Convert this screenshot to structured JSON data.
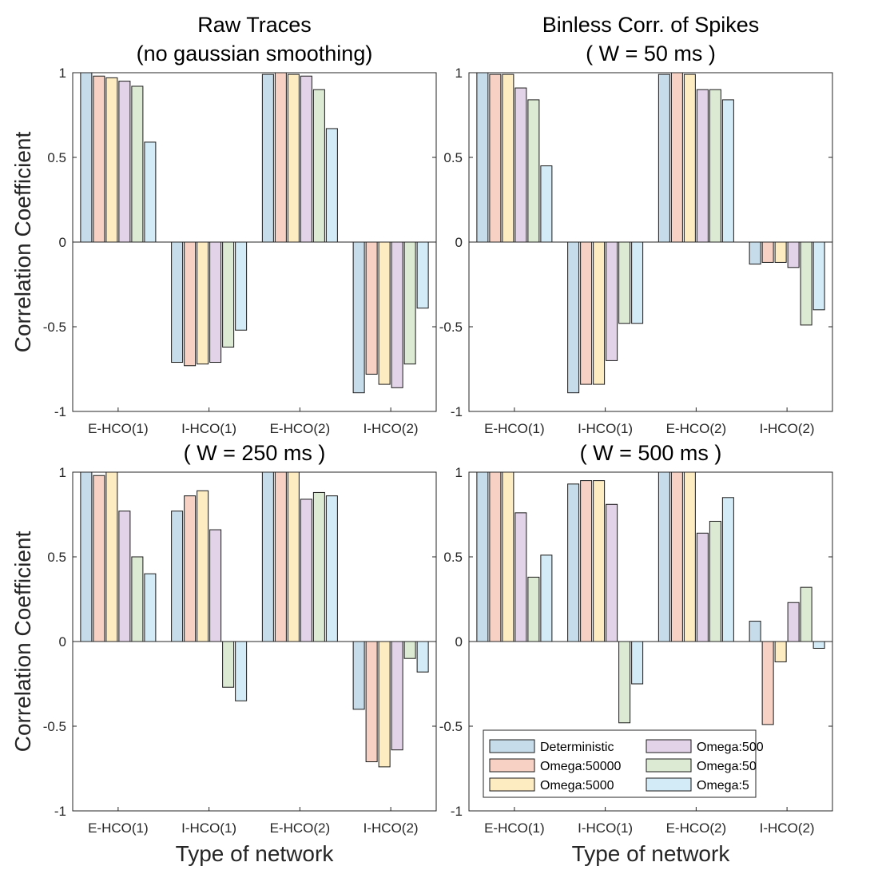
{
  "chart_data": [
    {
      "type": "bar",
      "title": [
        "Raw Traces",
        "(no gaussian smoothing)"
      ],
      "xlabel": "",
      "ylabel": "Correlation Coefficient",
      "ylim": [
        -1,
        1
      ],
      "yticks": [
        "1",
        "0.5",
        "0",
        "-0.5",
        "-1"
      ],
      "categories": [
        "E-HCO(1)",
        "I-HCO(1)",
        "E-HCO(2)",
        "I-HCO(2)"
      ],
      "series": [
        {
          "name": "Deterministic",
          "values": [
            1.0,
            -0.71,
            0.99,
            -0.89
          ]
        },
        {
          "name": "Omega:50000",
          "values": [
            0.98,
            -0.73,
            1.0,
            -0.78
          ]
        },
        {
          "name": "Omega:5000",
          "values": [
            0.97,
            -0.72,
            0.99,
            -0.84
          ]
        },
        {
          "name": "Omega:500",
          "values": [
            0.95,
            -0.71,
            0.98,
            -0.86
          ]
        },
        {
          "name": "Omega:50",
          "values": [
            0.92,
            -0.62,
            0.9,
            -0.72
          ]
        },
        {
          "name": "Omega:5",
          "values": [
            0.59,
            -0.52,
            0.67,
            -0.39
          ]
        }
      ]
    },
    {
      "type": "bar",
      "title": [
        "Binless Corr. of Spikes",
        "( W = 50 ms )"
      ],
      "xlabel": "",
      "ylabel": "",
      "ylim": [
        -1,
        1
      ],
      "yticks": [
        "1",
        "0.5",
        "0",
        "-0.5",
        "-1"
      ],
      "categories": [
        "E-HCO(1)",
        "I-HCO(1)",
        "E-HCO(2)",
        "I-HCO(2)"
      ],
      "series": [
        {
          "name": "Deterministic",
          "values": [
            1.0,
            -0.89,
            0.99,
            -0.13
          ]
        },
        {
          "name": "Omega:50000",
          "values": [
            0.99,
            -0.84,
            1.0,
            -0.12
          ]
        },
        {
          "name": "Omega:5000",
          "values": [
            0.99,
            -0.84,
            0.99,
            -0.12
          ]
        },
        {
          "name": "Omega:500",
          "values": [
            0.91,
            -0.7,
            0.9,
            -0.15
          ]
        },
        {
          "name": "Omega:50",
          "values": [
            0.84,
            -0.48,
            0.9,
            -0.49
          ]
        },
        {
          "name": "Omega:5",
          "values": [
            0.45,
            -0.48,
            0.84,
            -0.4
          ]
        }
      ]
    },
    {
      "type": "bar",
      "title": [
        "( W = 250 ms )"
      ],
      "xlabel": "Type of network",
      "ylabel": "Correlation Coefficient",
      "ylim": [
        -1,
        1
      ],
      "yticks": [
        "1",
        "0.5",
        "0",
        "-0.5",
        "-1"
      ],
      "categories": [
        "E-HCO(1)",
        "I-HCO(1)",
        "E-HCO(2)",
        "I-HCO(2)"
      ],
      "series": [
        {
          "name": "Deterministic",
          "values": [
            1.0,
            0.77,
            1.0,
            -0.4
          ]
        },
        {
          "name": "Omega:50000",
          "values": [
            0.98,
            0.86,
            1.0,
            -0.71
          ]
        },
        {
          "name": "Omega:5000",
          "values": [
            1.0,
            0.89,
            1.0,
            -0.74
          ]
        },
        {
          "name": "Omega:500",
          "values": [
            0.77,
            0.66,
            0.84,
            -0.64
          ]
        },
        {
          "name": "Omega:50",
          "values": [
            0.5,
            -0.27,
            0.88,
            -0.1
          ]
        },
        {
          "name": "Omega:5",
          "values": [
            0.4,
            -0.35,
            0.86,
            -0.18
          ]
        }
      ]
    },
    {
      "type": "bar",
      "title": [
        "( W = 500 ms )"
      ],
      "xlabel": "Type of network",
      "ylabel": "",
      "ylim": [
        -1,
        1
      ],
      "yticks": [
        "1",
        "0.5",
        "0",
        "-0.5",
        "-1"
      ],
      "categories": [
        "E-HCO(1)",
        "I-HCO(1)",
        "E-HCO(2)",
        "I-HCO(2)"
      ],
      "series": [
        {
          "name": "Deterministic",
          "values": [
            1.0,
            0.93,
            1.0,
            0.12
          ]
        },
        {
          "name": "Omega:50000",
          "values": [
            1.0,
            0.95,
            1.0,
            -0.49
          ]
        },
        {
          "name": "Omega:5000",
          "values": [
            1.0,
            0.95,
            1.0,
            -0.12
          ]
        },
        {
          "name": "Omega:500",
          "values": [
            0.76,
            0.81,
            0.64,
            0.23
          ]
        },
        {
          "name": "Omega:50",
          "values": [
            0.38,
            -0.48,
            0.71,
            0.32
          ]
        },
        {
          "name": "Omega:5",
          "values": [
            0.51,
            -0.25,
            0.85,
            -0.04
          ]
        }
      ],
      "legend": {
        "placement": "bottom-right",
        "columns": 2
      }
    }
  ],
  "series_colors": [
    "#c7dcea",
    "#f7d2c4",
    "#fdebc2",
    "#e3d3e8",
    "#dce9d3",
    "#d2ebf6"
  ]
}
